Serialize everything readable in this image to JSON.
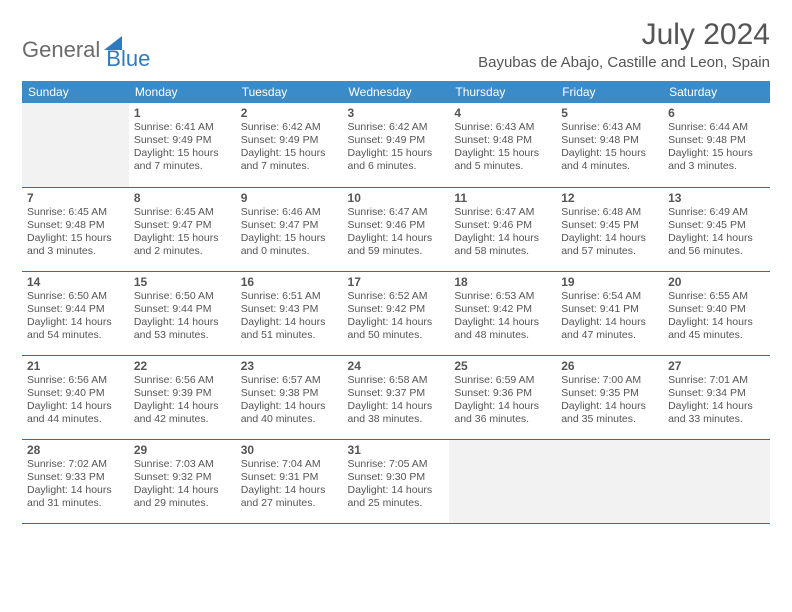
{
  "brand": {
    "part1": "General",
    "part2": "Blue"
  },
  "title": "July 2024",
  "location": "Bayubas de Abajo, Castille and Leon, Spain",
  "colors": {
    "header_bg": "#3b8bc9",
    "header_fg": "#ffffff",
    "cell_border": "#2f6fa6",
    "empty_bg": "#f2f2f2",
    "text": "#555555",
    "logo_gray": "#6b6b6b",
    "logo_blue": "#2f7bbf"
  },
  "weekdays": [
    "Sunday",
    "Monday",
    "Tuesday",
    "Wednesday",
    "Thursday",
    "Friday",
    "Saturday"
  ],
  "weeks": [
    [
      null,
      {
        "d": "1",
        "sr": "Sunrise: 6:41 AM",
        "ss": "Sunset: 9:49 PM",
        "dl1": "Daylight: 15 hours",
        "dl2": "and 7 minutes."
      },
      {
        "d": "2",
        "sr": "Sunrise: 6:42 AM",
        "ss": "Sunset: 9:49 PM",
        "dl1": "Daylight: 15 hours",
        "dl2": "and 7 minutes."
      },
      {
        "d": "3",
        "sr": "Sunrise: 6:42 AM",
        "ss": "Sunset: 9:49 PM",
        "dl1": "Daylight: 15 hours",
        "dl2": "and 6 minutes."
      },
      {
        "d": "4",
        "sr": "Sunrise: 6:43 AM",
        "ss": "Sunset: 9:48 PM",
        "dl1": "Daylight: 15 hours",
        "dl2": "and 5 minutes."
      },
      {
        "d": "5",
        "sr": "Sunrise: 6:43 AM",
        "ss": "Sunset: 9:48 PM",
        "dl1": "Daylight: 15 hours",
        "dl2": "and 4 minutes."
      },
      {
        "d": "6",
        "sr": "Sunrise: 6:44 AM",
        "ss": "Sunset: 9:48 PM",
        "dl1": "Daylight: 15 hours",
        "dl2": "and 3 minutes."
      }
    ],
    [
      {
        "d": "7",
        "sr": "Sunrise: 6:45 AM",
        "ss": "Sunset: 9:48 PM",
        "dl1": "Daylight: 15 hours",
        "dl2": "and 3 minutes."
      },
      {
        "d": "8",
        "sr": "Sunrise: 6:45 AM",
        "ss": "Sunset: 9:47 PM",
        "dl1": "Daylight: 15 hours",
        "dl2": "and 2 minutes."
      },
      {
        "d": "9",
        "sr": "Sunrise: 6:46 AM",
        "ss": "Sunset: 9:47 PM",
        "dl1": "Daylight: 15 hours",
        "dl2": "and 0 minutes."
      },
      {
        "d": "10",
        "sr": "Sunrise: 6:47 AM",
        "ss": "Sunset: 9:46 PM",
        "dl1": "Daylight: 14 hours",
        "dl2": "and 59 minutes."
      },
      {
        "d": "11",
        "sr": "Sunrise: 6:47 AM",
        "ss": "Sunset: 9:46 PM",
        "dl1": "Daylight: 14 hours",
        "dl2": "and 58 minutes."
      },
      {
        "d": "12",
        "sr": "Sunrise: 6:48 AM",
        "ss": "Sunset: 9:45 PM",
        "dl1": "Daylight: 14 hours",
        "dl2": "and 57 minutes."
      },
      {
        "d": "13",
        "sr": "Sunrise: 6:49 AM",
        "ss": "Sunset: 9:45 PM",
        "dl1": "Daylight: 14 hours",
        "dl2": "and 56 minutes."
      }
    ],
    [
      {
        "d": "14",
        "sr": "Sunrise: 6:50 AM",
        "ss": "Sunset: 9:44 PM",
        "dl1": "Daylight: 14 hours",
        "dl2": "and 54 minutes."
      },
      {
        "d": "15",
        "sr": "Sunrise: 6:50 AM",
        "ss": "Sunset: 9:44 PM",
        "dl1": "Daylight: 14 hours",
        "dl2": "and 53 minutes."
      },
      {
        "d": "16",
        "sr": "Sunrise: 6:51 AM",
        "ss": "Sunset: 9:43 PM",
        "dl1": "Daylight: 14 hours",
        "dl2": "and 51 minutes."
      },
      {
        "d": "17",
        "sr": "Sunrise: 6:52 AM",
        "ss": "Sunset: 9:42 PM",
        "dl1": "Daylight: 14 hours",
        "dl2": "and 50 minutes."
      },
      {
        "d": "18",
        "sr": "Sunrise: 6:53 AM",
        "ss": "Sunset: 9:42 PM",
        "dl1": "Daylight: 14 hours",
        "dl2": "and 48 minutes."
      },
      {
        "d": "19",
        "sr": "Sunrise: 6:54 AM",
        "ss": "Sunset: 9:41 PM",
        "dl1": "Daylight: 14 hours",
        "dl2": "and 47 minutes."
      },
      {
        "d": "20",
        "sr": "Sunrise: 6:55 AM",
        "ss": "Sunset: 9:40 PM",
        "dl1": "Daylight: 14 hours",
        "dl2": "and 45 minutes."
      }
    ],
    [
      {
        "d": "21",
        "sr": "Sunrise: 6:56 AM",
        "ss": "Sunset: 9:40 PM",
        "dl1": "Daylight: 14 hours",
        "dl2": "and 44 minutes."
      },
      {
        "d": "22",
        "sr": "Sunrise: 6:56 AM",
        "ss": "Sunset: 9:39 PM",
        "dl1": "Daylight: 14 hours",
        "dl2": "and 42 minutes."
      },
      {
        "d": "23",
        "sr": "Sunrise: 6:57 AM",
        "ss": "Sunset: 9:38 PM",
        "dl1": "Daylight: 14 hours",
        "dl2": "and 40 minutes."
      },
      {
        "d": "24",
        "sr": "Sunrise: 6:58 AM",
        "ss": "Sunset: 9:37 PM",
        "dl1": "Daylight: 14 hours",
        "dl2": "and 38 minutes."
      },
      {
        "d": "25",
        "sr": "Sunrise: 6:59 AM",
        "ss": "Sunset: 9:36 PM",
        "dl1": "Daylight: 14 hours",
        "dl2": "and 36 minutes."
      },
      {
        "d": "26",
        "sr": "Sunrise: 7:00 AM",
        "ss": "Sunset: 9:35 PM",
        "dl1": "Daylight: 14 hours",
        "dl2": "and 35 minutes."
      },
      {
        "d": "27",
        "sr": "Sunrise: 7:01 AM",
        "ss": "Sunset: 9:34 PM",
        "dl1": "Daylight: 14 hours",
        "dl2": "and 33 minutes."
      }
    ],
    [
      {
        "d": "28",
        "sr": "Sunrise: 7:02 AM",
        "ss": "Sunset: 9:33 PM",
        "dl1": "Daylight: 14 hours",
        "dl2": "and 31 minutes."
      },
      {
        "d": "29",
        "sr": "Sunrise: 7:03 AM",
        "ss": "Sunset: 9:32 PM",
        "dl1": "Daylight: 14 hours",
        "dl2": "and 29 minutes."
      },
      {
        "d": "30",
        "sr": "Sunrise: 7:04 AM",
        "ss": "Sunset: 9:31 PM",
        "dl1": "Daylight: 14 hours",
        "dl2": "and 27 minutes."
      },
      {
        "d": "31",
        "sr": "Sunrise: 7:05 AM",
        "ss": "Sunset: 9:30 PM",
        "dl1": "Daylight: 14 hours",
        "dl2": "and 25 minutes."
      },
      null,
      null,
      null
    ]
  ]
}
